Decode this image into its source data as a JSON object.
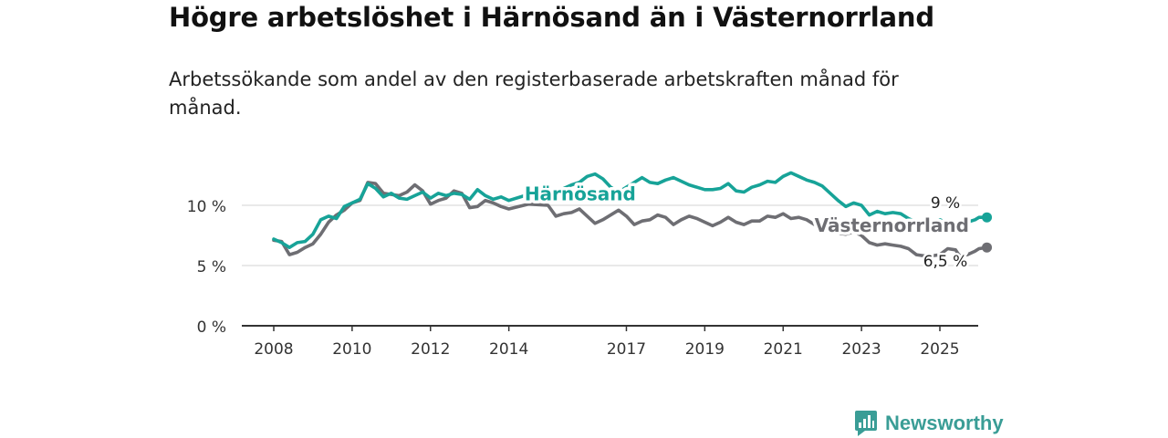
{
  "header": {
    "title": "Högre arbetslöshet i Härnösand än i Västernorrland",
    "subtitle": "Arbetssökande som andel av den registerbaserade arbetskraften månad för månad."
  },
  "brand": {
    "name": "Newsworthy",
    "icon": "bar-chart-speech-bubble-icon",
    "color": "#3a9d96"
  },
  "chart_data": {
    "type": "line",
    "title": "Högre arbetslöshet i Härnösand än i Västernorrland",
    "subtitle": "Arbetssökande som andel av den registerbaserade arbetskraften månad för månad.",
    "xlabel": "",
    "ylabel": "",
    "xlim": [
      2007.0,
      2025.9
    ],
    "ylim": [
      0,
      13.5
    ],
    "x_ticks": [
      {
        "value": 2008,
        "label": "2008"
      },
      {
        "value": 2010,
        "label": "2010"
      },
      {
        "value": 2012,
        "label": "2012"
      },
      {
        "value": 2014,
        "label": "2014"
      },
      {
        "value": 2017,
        "label": "2017"
      },
      {
        "value": 2019,
        "label": "2019"
      },
      {
        "value": 2021,
        "label": "2021"
      },
      {
        "value": 2023,
        "label": "2023"
      },
      {
        "value": 2025,
        "label": "2025"
      }
    ],
    "y_ticks": [
      {
        "value": 0,
        "label": "0 %"
      },
      {
        "value": 5,
        "label": "5 %"
      },
      {
        "value": 10,
        "label": "10 %"
      }
    ],
    "grid": true,
    "legend": "inline",
    "series": [
      {
        "name": "Härnösand",
        "color": "#17a398",
        "label_at": [
          2014.4,
          10.4
        ],
        "end_label": "9 %",
        "points": [
          [
            2008.0,
            7.2
          ],
          [
            2008.2,
            6.9
          ],
          [
            2008.4,
            6.5
          ],
          [
            2008.6,
            6.9
          ],
          [
            2008.8,
            7.0
          ],
          [
            2009.0,
            7.6
          ],
          [
            2009.2,
            8.8
          ],
          [
            2009.4,
            9.1
          ],
          [
            2009.6,
            8.9
          ],
          [
            2009.8,
            9.9
          ],
          [
            2010.0,
            10.2
          ],
          [
            2010.2,
            10.5
          ],
          [
            2010.4,
            11.8
          ],
          [
            2010.6,
            11.4
          ],
          [
            2010.8,
            10.7
          ],
          [
            2011.0,
            11.0
          ],
          [
            2011.2,
            10.6
          ],
          [
            2011.4,
            10.5
          ],
          [
            2011.6,
            10.8
          ],
          [
            2011.8,
            11.1
          ],
          [
            2012.0,
            10.6
          ],
          [
            2012.2,
            11.0
          ],
          [
            2012.4,
            10.8
          ],
          [
            2012.6,
            11.0
          ],
          [
            2012.8,
            10.9
          ],
          [
            2013.0,
            10.5
          ],
          [
            2013.2,
            11.3
          ],
          [
            2013.4,
            10.8
          ],
          [
            2013.6,
            10.5
          ],
          [
            2013.8,
            10.7
          ],
          [
            2014.0,
            10.4
          ],
          [
            2014.5,
            10.9
          ],
          [
            2015.0,
            11.3
          ],
          [
            2015.2,
            11.1
          ],
          [
            2015.4,
            11.4
          ],
          [
            2015.6,
            11.7
          ],
          [
            2015.8,
            11.9
          ],
          [
            2016.0,
            12.4
          ],
          [
            2016.2,
            12.6
          ],
          [
            2016.4,
            12.2
          ],
          [
            2016.6,
            11.5
          ],
          [
            2016.8,
            11.1
          ],
          [
            2017.0,
            11.5
          ],
          [
            2017.2,
            11.9
          ],
          [
            2017.4,
            12.3
          ],
          [
            2017.6,
            11.9
          ],
          [
            2017.8,
            11.8
          ],
          [
            2018.0,
            12.1
          ],
          [
            2018.2,
            12.3
          ],
          [
            2018.4,
            12.0
          ],
          [
            2018.6,
            11.7
          ],
          [
            2018.8,
            11.5
          ],
          [
            2019.0,
            11.3
          ],
          [
            2019.2,
            11.3
          ],
          [
            2019.4,
            11.4
          ],
          [
            2019.6,
            11.8
          ],
          [
            2019.8,
            11.2
          ],
          [
            2020.0,
            11.1
          ],
          [
            2020.2,
            11.5
          ],
          [
            2020.4,
            11.7
          ],
          [
            2020.6,
            12.0
          ],
          [
            2020.8,
            11.9
          ],
          [
            2021.0,
            12.4
          ],
          [
            2021.2,
            12.7
          ],
          [
            2021.4,
            12.4
          ],
          [
            2021.6,
            12.1
          ],
          [
            2021.8,
            11.9
          ],
          [
            2022.0,
            11.6
          ],
          [
            2022.2,
            11.0
          ],
          [
            2022.4,
            10.4
          ],
          [
            2022.6,
            9.9
          ],
          [
            2022.8,
            10.2
          ],
          [
            2023.0,
            10.0
          ],
          [
            2023.2,
            9.2
          ],
          [
            2023.4,
            9.5
          ],
          [
            2023.6,
            9.3
          ],
          [
            2023.8,
            9.4
          ],
          [
            2024.0,
            9.3
          ],
          [
            2024.2,
            8.9
          ],
          [
            2024.4,
            8.6
          ],
          [
            2024.6,
            8.7
          ],
          [
            2024.8,
            8.5
          ],
          [
            2025.0,
            8.8
          ],
          [
            2025.2,
            8.5
          ],
          [
            2025.4,
            8.2
          ],
          [
            2025.5,
            8.4
          ],
          [
            2025.7,
            8.6
          ],
          [
            2025.9,
            8.8
          ],
          [
            2026.0,
            9.0
          ],
          [
            2026.2,
            9.0
          ]
        ]
      },
      {
        "name": "Västernorrland",
        "color": "#6e6e73",
        "label_at": [
          2021.8,
          7.8
        ],
        "end_label": "6,5 %",
        "points": [
          [
            2008.0,
            7.1
          ],
          [
            2008.2,
            7.0
          ],
          [
            2008.4,
            5.9
          ],
          [
            2008.6,
            6.1
          ],
          [
            2008.8,
            6.5
          ],
          [
            2009.0,
            6.8
          ],
          [
            2009.2,
            7.6
          ],
          [
            2009.4,
            8.6
          ],
          [
            2009.6,
            9.2
          ],
          [
            2009.8,
            9.6
          ],
          [
            2010.0,
            10.2
          ],
          [
            2010.2,
            10.4
          ],
          [
            2010.4,
            11.9
          ],
          [
            2010.6,
            11.8
          ],
          [
            2010.8,
            11.0
          ],
          [
            2011.0,
            10.9
          ],
          [
            2011.2,
            10.8
          ],
          [
            2011.4,
            11.1
          ],
          [
            2011.6,
            11.7
          ],
          [
            2011.8,
            11.2
          ],
          [
            2012.0,
            10.1
          ],
          [
            2012.2,
            10.4
          ],
          [
            2012.4,
            10.6
          ],
          [
            2012.6,
            11.2
          ],
          [
            2012.8,
            11.0
          ],
          [
            2013.0,
            9.8
          ],
          [
            2013.2,
            9.9
          ],
          [
            2013.4,
            10.4
          ],
          [
            2013.6,
            10.2
          ],
          [
            2013.8,
            9.9
          ],
          [
            2014.0,
            9.7
          ],
          [
            2014.5,
            10.1
          ],
          [
            2015.0,
            10.0
          ],
          [
            2015.2,
            9.1
          ],
          [
            2015.4,
            9.3
          ],
          [
            2015.6,
            9.4
          ],
          [
            2015.8,
            9.7
          ],
          [
            2016.0,
            9.1
          ],
          [
            2016.2,
            8.5
          ],
          [
            2016.4,
            8.8
          ],
          [
            2016.6,
            9.2
          ],
          [
            2016.8,
            9.6
          ],
          [
            2017.0,
            9.1
          ],
          [
            2017.2,
            8.4
          ],
          [
            2017.4,
            8.7
          ],
          [
            2017.6,
            8.8
          ],
          [
            2017.8,
            9.2
          ],
          [
            2018.0,
            9.0
          ],
          [
            2018.2,
            8.4
          ],
          [
            2018.4,
            8.8
          ],
          [
            2018.6,
            9.1
          ],
          [
            2018.8,
            8.9
          ],
          [
            2019.0,
            8.6
          ],
          [
            2019.2,
            8.3
          ],
          [
            2019.4,
            8.6
          ],
          [
            2019.6,
            9.0
          ],
          [
            2019.8,
            8.6
          ],
          [
            2020.0,
            8.4
          ],
          [
            2020.2,
            8.7
          ],
          [
            2020.4,
            8.7
          ],
          [
            2020.6,
            9.1
          ],
          [
            2020.8,
            9.0
          ],
          [
            2021.0,
            9.3
          ],
          [
            2021.2,
            8.9
          ],
          [
            2021.4,
            9.0
          ],
          [
            2021.6,
            8.8
          ],
          [
            2021.8,
            8.4
          ],
          [
            2022.0,
            8.0
          ],
          [
            2022.2,
            7.8
          ],
          [
            2022.4,
            7.7
          ],
          [
            2022.6,
            7.6
          ],
          [
            2022.8,
            7.8
          ],
          [
            2023.0,
            7.5
          ],
          [
            2023.2,
            6.9
          ],
          [
            2023.4,
            6.7
          ],
          [
            2023.6,
            6.8
          ],
          [
            2023.8,
            6.7
          ],
          [
            2024.0,
            6.6
          ],
          [
            2024.2,
            6.4
          ],
          [
            2024.4,
            5.9
          ],
          [
            2024.6,
            5.8
          ],
          [
            2024.8,
            5.8
          ],
          [
            2025.0,
            5.9
          ],
          [
            2025.2,
            6.4
          ],
          [
            2025.4,
            6.3
          ],
          [
            2025.5,
            5.8
          ],
          [
            2025.7,
            5.9
          ],
          [
            2025.9,
            6.2
          ],
          [
            2026.0,
            6.4
          ],
          [
            2026.2,
            6.5
          ]
        ]
      }
    ]
  }
}
